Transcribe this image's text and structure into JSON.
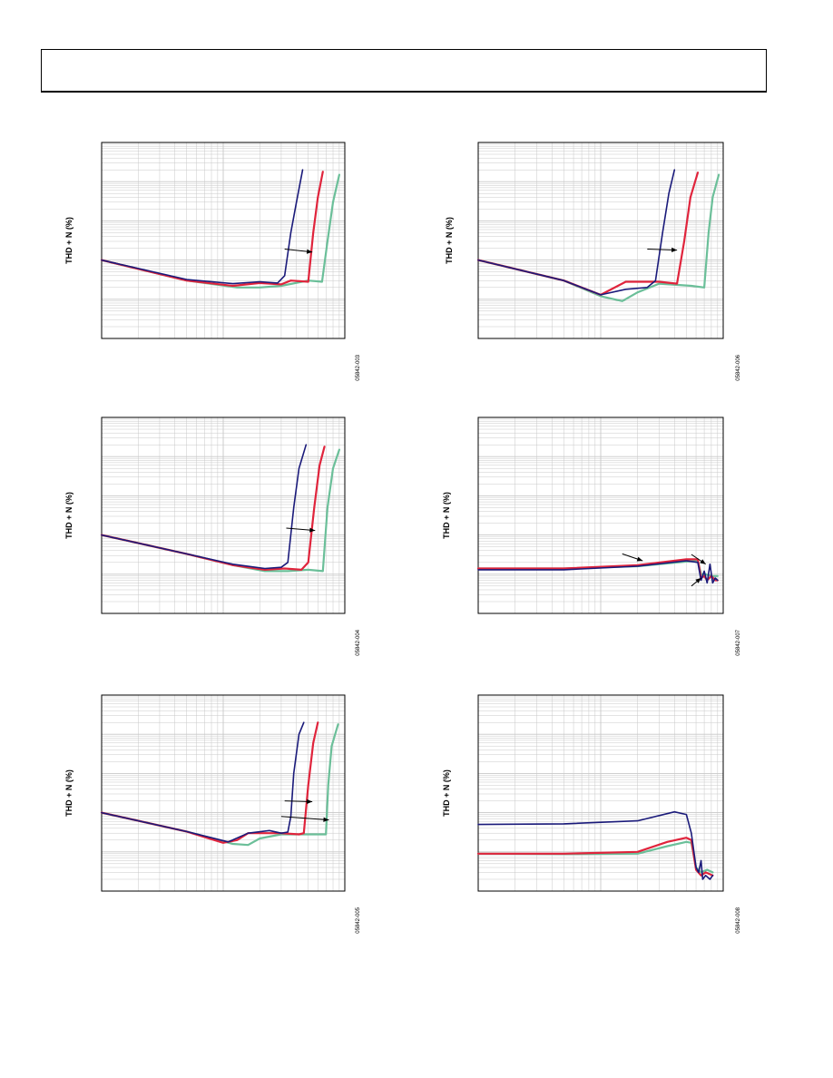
{
  "header": {
    "text": ""
  },
  "colors": {
    "series1": "#1a1a7a",
    "series2": "#e0243c",
    "series3": "#6bbf99",
    "grid": "#c8c8c8"
  },
  "chart_data": [
    {
      "type": "line",
      "ylabel": "THD + N (%)",
      "code": "05842-003",
      "xscale": "log",
      "yscale": "log",
      "grid": true,
      "series": [
        {
          "values": [
            [
              0.01,
              1.0
            ],
            [
              0.05,
              0.32
            ],
            [
              0.12,
              0.25
            ],
            [
              0.2,
              0.28
            ],
            [
              0.28,
              0.26
            ],
            [
              0.32,
              0.4
            ],
            [
              0.36,
              5
            ],
            [
              0.4,
              30
            ],
            [
              0.45,
              200
            ]
          ]
        },
        {
          "values": [
            [
              0.01,
              1.0
            ],
            [
              0.05,
              0.3
            ],
            [
              0.12,
              0.22
            ],
            [
              0.2,
              0.26
            ],
            [
              0.3,
              0.24
            ],
            [
              0.36,
              0.3
            ],
            [
              0.5,
              0.28
            ],
            [
              0.55,
              5
            ],
            [
              0.6,
              40
            ],
            [
              0.66,
              180
            ]
          ]
        },
        {
          "values": [
            [
              0.01,
              1.0
            ],
            [
              0.05,
              0.3
            ],
            [
              0.13,
              0.2
            ],
            [
              0.2,
              0.2
            ],
            [
              0.3,
              0.22
            ],
            [
              0.5,
              0.3
            ],
            [
              0.65,
              0.28
            ],
            [
              0.72,
              3
            ],
            [
              0.8,
              30
            ],
            [
              0.9,
              150
            ]
          ]
        }
      ],
      "annotations": [
        {
          "from": [
            0.32,
            1.9
          ],
          "to": [
            0.54,
            1.6
          ]
        }
      ]
    },
    {
      "type": "line",
      "ylabel": "THD + N (%)",
      "code": "05842-006",
      "xscale": "log",
      "yscale": "log",
      "grid": true,
      "series": [
        {
          "values": [
            [
              0.01,
              1.0
            ],
            [
              0.05,
              0.3
            ],
            [
              0.1,
              0.13
            ],
            [
              0.16,
              0.18
            ],
            [
              0.24,
              0.2
            ],
            [
              0.28,
              0.3
            ],
            [
              0.32,
              5
            ],
            [
              0.36,
              50
            ],
            [
              0.4,
              200
            ]
          ]
        },
        {
          "values": [
            [
              0.01,
              1.0
            ],
            [
              0.05,
              0.3
            ],
            [
              0.1,
              0.13
            ],
            [
              0.16,
              0.28
            ],
            [
              0.3,
              0.28
            ],
            [
              0.42,
              0.25
            ],
            [
              0.48,
              3
            ],
            [
              0.54,
              40
            ],
            [
              0.62,
              170
            ]
          ]
        },
        {
          "values": [
            [
              0.01,
              1.0
            ],
            [
              0.05,
              0.3
            ],
            [
              0.1,
              0.12
            ],
            [
              0.15,
              0.09
            ],
            [
              0.2,
              0.15
            ],
            [
              0.3,
              0.25
            ],
            [
              0.55,
              0.22
            ],
            [
              0.7,
              0.2
            ],
            [
              0.76,
              5
            ],
            [
              0.82,
              40
            ],
            [
              0.92,
              150
            ]
          ]
        }
      ],
      "annotations": [
        {
          "from": [
            0.24,
            1.9
          ],
          "to": [
            0.42,
            1.8
          ]
        }
      ]
    },
    {
      "type": "line",
      "ylabel": "THD + N (%)",
      "code": "05842-004",
      "xscale": "log",
      "yscale": "log",
      "grid": true,
      "series": [
        {
          "values": [
            [
              0.01,
              1.0
            ],
            [
              0.05,
              0.33
            ],
            [
              0.12,
              0.18
            ],
            [
              0.22,
              0.14
            ],
            [
              0.3,
              0.15
            ],
            [
              0.34,
              0.2
            ],
            [
              0.38,
              5
            ],
            [
              0.42,
              50
            ],
            [
              0.48,
              200
            ]
          ]
        },
        {
          "values": [
            [
              0.01,
              1.0
            ],
            [
              0.05,
              0.33
            ],
            [
              0.12,
              0.17
            ],
            [
              0.22,
              0.13
            ],
            [
              0.32,
              0.14
            ],
            [
              0.44,
              0.13
            ],
            [
              0.5,
              0.2
            ],
            [
              0.56,
              5
            ],
            [
              0.62,
              60
            ],
            [
              0.68,
              180
            ]
          ]
        },
        {
          "values": [
            [
              0.01,
              1.0
            ],
            [
              0.05,
              0.33
            ],
            [
              0.12,
              0.17
            ],
            [
              0.22,
              0.12
            ],
            [
              0.34,
              0.12
            ],
            [
              0.5,
              0.13
            ],
            [
              0.66,
              0.12
            ],
            [
              0.72,
              5
            ],
            [
              0.8,
              50
            ],
            [
              0.9,
              150
            ]
          ]
        }
      ],
      "annotations": [
        {
          "from": [
            0.33,
            1.5
          ],
          "to": [
            0.57,
            1.3
          ]
        }
      ]
    },
    {
      "type": "line",
      "ylabel": "THD + N (%)",
      "code": "05842-007",
      "xscale": "log",
      "yscale": "log",
      "grid": true,
      "series": [
        {
          "values": [
            [
              0.01,
              0.13
            ],
            [
              0.05,
              0.13
            ],
            [
              0.2,
              0.16
            ],
            [
              0.5,
              0.22
            ],
            [
              0.62,
              0.2
            ],
            [
              0.66,
              0.07
            ],
            [
              0.7,
              0.12
            ],
            [
              0.74,
              0.06
            ],
            [
              0.78,
              0.18
            ],
            [
              0.82,
              0.06
            ],
            [
              0.86,
              0.08
            ],
            [
              0.9,
              0.07
            ]
          ]
        },
        {
          "values": [
            [
              0.01,
              0.14
            ],
            [
              0.05,
              0.14
            ],
            [
              0.2,
              0.17
            ],
            [
              0.5,
              0.24
            ],
            [
              0.62,
              0.24
            ],
            [
              0.66,
              0.08
            ],
            [
              0.7,
              0.09
            ],
            [
              0.74,
              0.07
            ],
            [
              0.8,
              0.09
            ],
            [
              0.86,
              0.07
            ],
            [
              0.9,
              0.07
            ]
          ]
        },
        {
          "values": [
            [
              0.01,
              0.14
            ],
            [
              0.05,
              0.14
            ],
            [
              0.2,
              0.16
            ],
            [
              0.5,
              0.21
            ],
            [
              0.62,
              0.22
            ],
            [
              0.66,
              0.1
            ],
            [
              0.72,
              0.1
            ],
            [
              0.8,
              0.09
            ],
            [
              0.9,
              0.09
            ]
          ]
        }
      ],
      "annotations": [
        {
          "from": [
            0.15,
            0.33
          ],
          "to": [
            0.22,
            0.22
          ]
        },
        {
          "from": [
            0.55,
            0.32
          ],
          "to": [
            0.72,
            0.18
          ]
        },
        {
          "from": [
            0.55,
            0.05
          ],
          "to": [
            0.66,
            0.08
          ]
        }
      ]
    },
    {
      "type": "line",
      "ylabel": "THD + N (%)",
      "code": "05842-005",
      "xscale": "log",
      "yscale": "log",
      "grid": true,
      "series": [
        {
          "values": [
            [
              0.01,
              1.0
            ],
            [
              0.05,
              0.33
            ],
            [
              0.11,
              0.18
            ],
            [
              0.16,
              0.3
            ],
            [
              0.24,
              0.35
            ],
            [
              0.3,
              0.3
            ],
            [
              0.34,
              0.32
            ],
            [
              0.36,
              0.8
            ],
            [
              0.38,
              10
            ],
            [
              0.42,
              100
            ],
            [
              0.46,
              200
            ]
          ]
        },
        {
          "values": [
            [
              0.01,
              1.0
            ],
            [
              0.05,
              0.33
            ],
            [
              0.1,
              0.17
            ],
            [
              0.13,
              0.2
            ],
            [
              0.16,
              0.3
            ],
            [
              0.3,
              0.3
            ],
            [
              0.42,
              0.28
            ],
            [
              0.46,
              0.3
            ],
            [
              0.5,
              5
            ],
            [
              0.55,
              60
            ],
            [
              0.6,
              200
            ]
          ]
        },
        {
          "values": [
            [
              0.01,
              1.0
            ],
            [
              0.05,
              0.33
            ],
            [
              0.12,
              0.16
            ],
            [
              0.16,
              0.15
            ],
            [
              0.2,
              0.22
            ],
            [
              0.3,
              0.28
            ],
            [
              0.55,
              0.28
            ],
            [
              0.7,
              0.28
            ],
            [
              0.73,
              5
            ],
            [
              0.78,
              50
            ],
            [
              0.88,
              180
            ]
          ]
        }
      ],
      "annotations": [
        {
          "from": [
            0.32,
            2.0
          ],
          "to": [
            0.54,
            1.9
          ]
        },
        {
          "from": [
            0.3,
            0.8
          ],
          "to": [
            0.74,
            0.65
          ]
        }
      ]
    },
    {
      "type": "line",
      "ylabel": "THD + N (%)",
      "code": "05842-008",
      "xscale": "log",
      "yscale": "log",
      "grid": true,
      "series": [
        {
          "values": [
            [
              0.01,
              0.5
            ],
            [
              0.05,
              0.52
            ],
            [
              0.2,
              0.62
            ],
            [
              0.4,
              1.05
            ],
            [
              0.5,
              0.9
            ],
            [
              0.55,
              0.3
            ],
            [
              0.6,
              0.04
            ],
            [
              0.63,
              0.03
            ],
            [
              0.66,
              0.06
            ],
            [
              0.68,
              0.02
            ],
            [
              0.72,
              0.025
            ],
            [
              0.78,
              0.02
            ],
            [
              0.82,
              0.025
            ]
          ]
        },
        {
          "values": [
            [
              0.01,
              0.09
            ],
            [
              0.05,
              0.09
            ],
            [
              0.2,
              0.1
            ],
            [
              0.35,
              0.18
            ],
            [
              0.5,
              0.23
            ],
            [
              0.55,
              0.2
            ],
            [
              0.6,
              0.035
            ],
            [
              0.66,
              0.025
            ],
            [
              0.72,
              0.03
            ],
            [
              0.82,
              0.025
            ]
          ]
        },
        {
          "values": [
            [
              0.01,
              0.09
            ],
            [
              0.05,
              0.088
            ],
            [
              0.2,
              0.09
            ],
            [
              0.35,
              0.14
            ],
            [
              0.5,
              0.18
            ],
            [
              0.55,
              0.17
            ],
            [
              0.6,
              0.04
            ],
            [
              0.66,
              0.03
            ],
            [
              0.74,
              0.035
            ],
            [
              0.82,
              0.03
            ]
          ]
        }
      ],
      "annotations": []
    }
  ]
}
